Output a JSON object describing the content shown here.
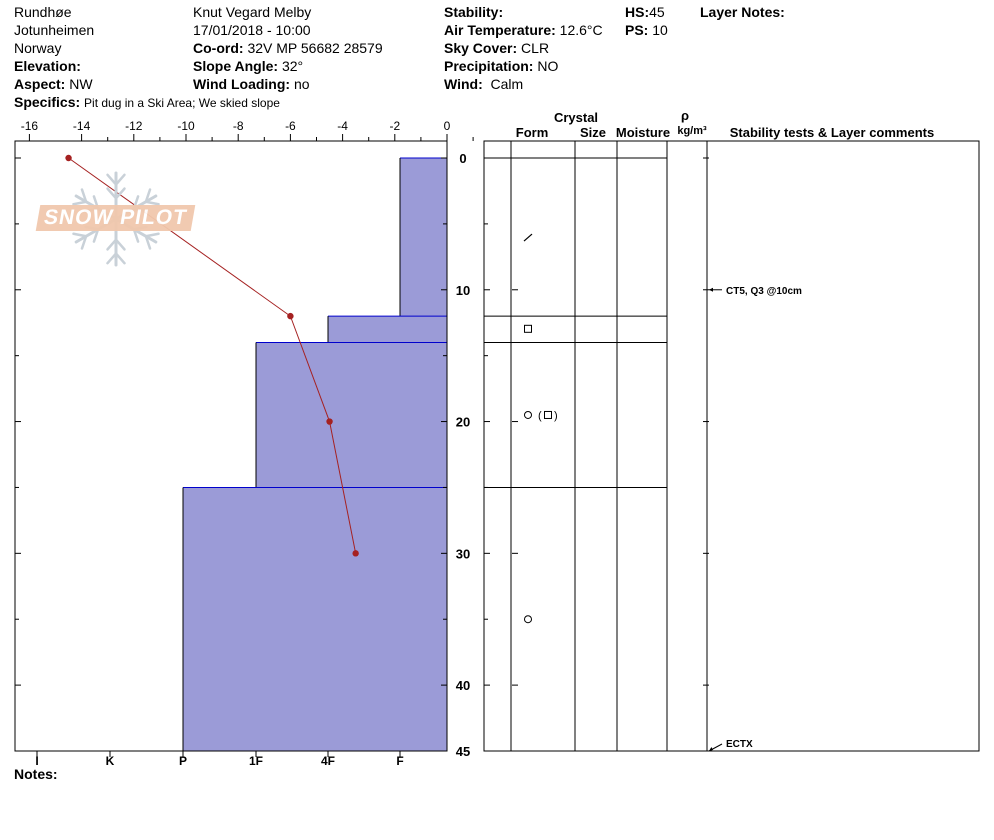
{
  "header": {
    "location": "Rundhøe",
    "region": "Jotunheimen",
    "country": "Norway",
    "elevation_label": "Elevation:",
    "elevation_value": "",
    "aspect_label": "Aspect:",
    "aspect_value": "NW",
    "specifics_label": "Specifics:",
    "specifics_value": "Pit dug in a Ski Area; We skied slope",
    "observer": "Knut Vegard Melby",
    "datetime": "17/01/2018 - 10:00",
    "coord_label": "Co-ord:",
    "coord_value": "32V MP 56682 28579",
    "slope_label": "Slope Angle:",
    "slope_value": "32°",
    "windload_label": "Wind Loading:",
    "windload_value": "no",
    "stability_label": "Stability:",
    "stability_value": "",
    "airtemp_label": "Air Temperature:",
    "airtemp_value": "12.6°C",
    "sky_label": "Sky Cover:",
    "sky_value": "CLR",
    "precip_label": "Precipitation:",
    "precip_value": "NO",
    "wind_label": "Wind:",
    "wind_value": "Calm",
    "hs_label": "HS:",
    "hs_value": "45",
    "ps_label": "PS:",
    "ps_value": "10",
    "layer_notes_label": "Layer Notes:",
    "notes_label": "Notes:"
  },
  "watermark": "SNOW PILOT",
  "columns": {
    "crystal": "Crystal",
    "form": "Form",
    "size": "Size",
    "moisture": "Moisture",
    "rho": "ρ",
    "density_unit": "kg/m³",
    "stability": "Stability tests & Layer comments"
  },
  "chart_data": {
    "type": "snow-profile",
    "temperature_axis": {
      "label": "",
      "ticks": [
        "-16",
        "-14",
        "-12",
        "-10",
        "-8",
        "-6",
        "-4",
        "-2",
        "0"
      ],
      "range": [
        -16.5,
        0
      ]
    },
    "depth_axis": {
      "ticks": [
        "0",
        "10",
        "20",
        "30",
        "40",
        "45"
      ],
      "range": [
        0,
        45
      ]
    },
    "hardness_axis": {
      "ticks": [
        "I",
        "K",
        "P",
        "1F",
        "4F",
        "F"
      ]
    },
    "temperature_series": {
      "depth_cm": [
        0,
        12,
        20,
        30
      ],
      "temp_c": [
        -14.5,
        -6.0,
        -4.5,
        -3.5
      ],
      "color": "#a52121"
    },
    "layers": [
      {
        "top": 0,
        "bottom": 12,
        "hardness": "F",
        "form": "/"
      },
      {
        "top": 12,
        "bottom": 14,
        "hardness": "4F",
        "form": "□"
      },
      {
        "top": 14,
        "bottom": 25,
        "hardness": "1F",
        "form": "○ (□)"
      },
      {
        "top": 25,
        "bottom": 45,
        "hardness": "P",
        "form": "○"
      }
    ],
    "form_symbol_depths": [
      6,
      13,
      19.5,
      35
    ],
    "stability_tests": [
      {
        "depth": 10,
        "text": "CT5, Q3 @10cm"
      },
      {
        "depth": 45,
        "text": "ECTX"
      }
    ],
    "layer_color": "#9b9bd7",
    "boundary_color": "#0000cc"
  }
}
